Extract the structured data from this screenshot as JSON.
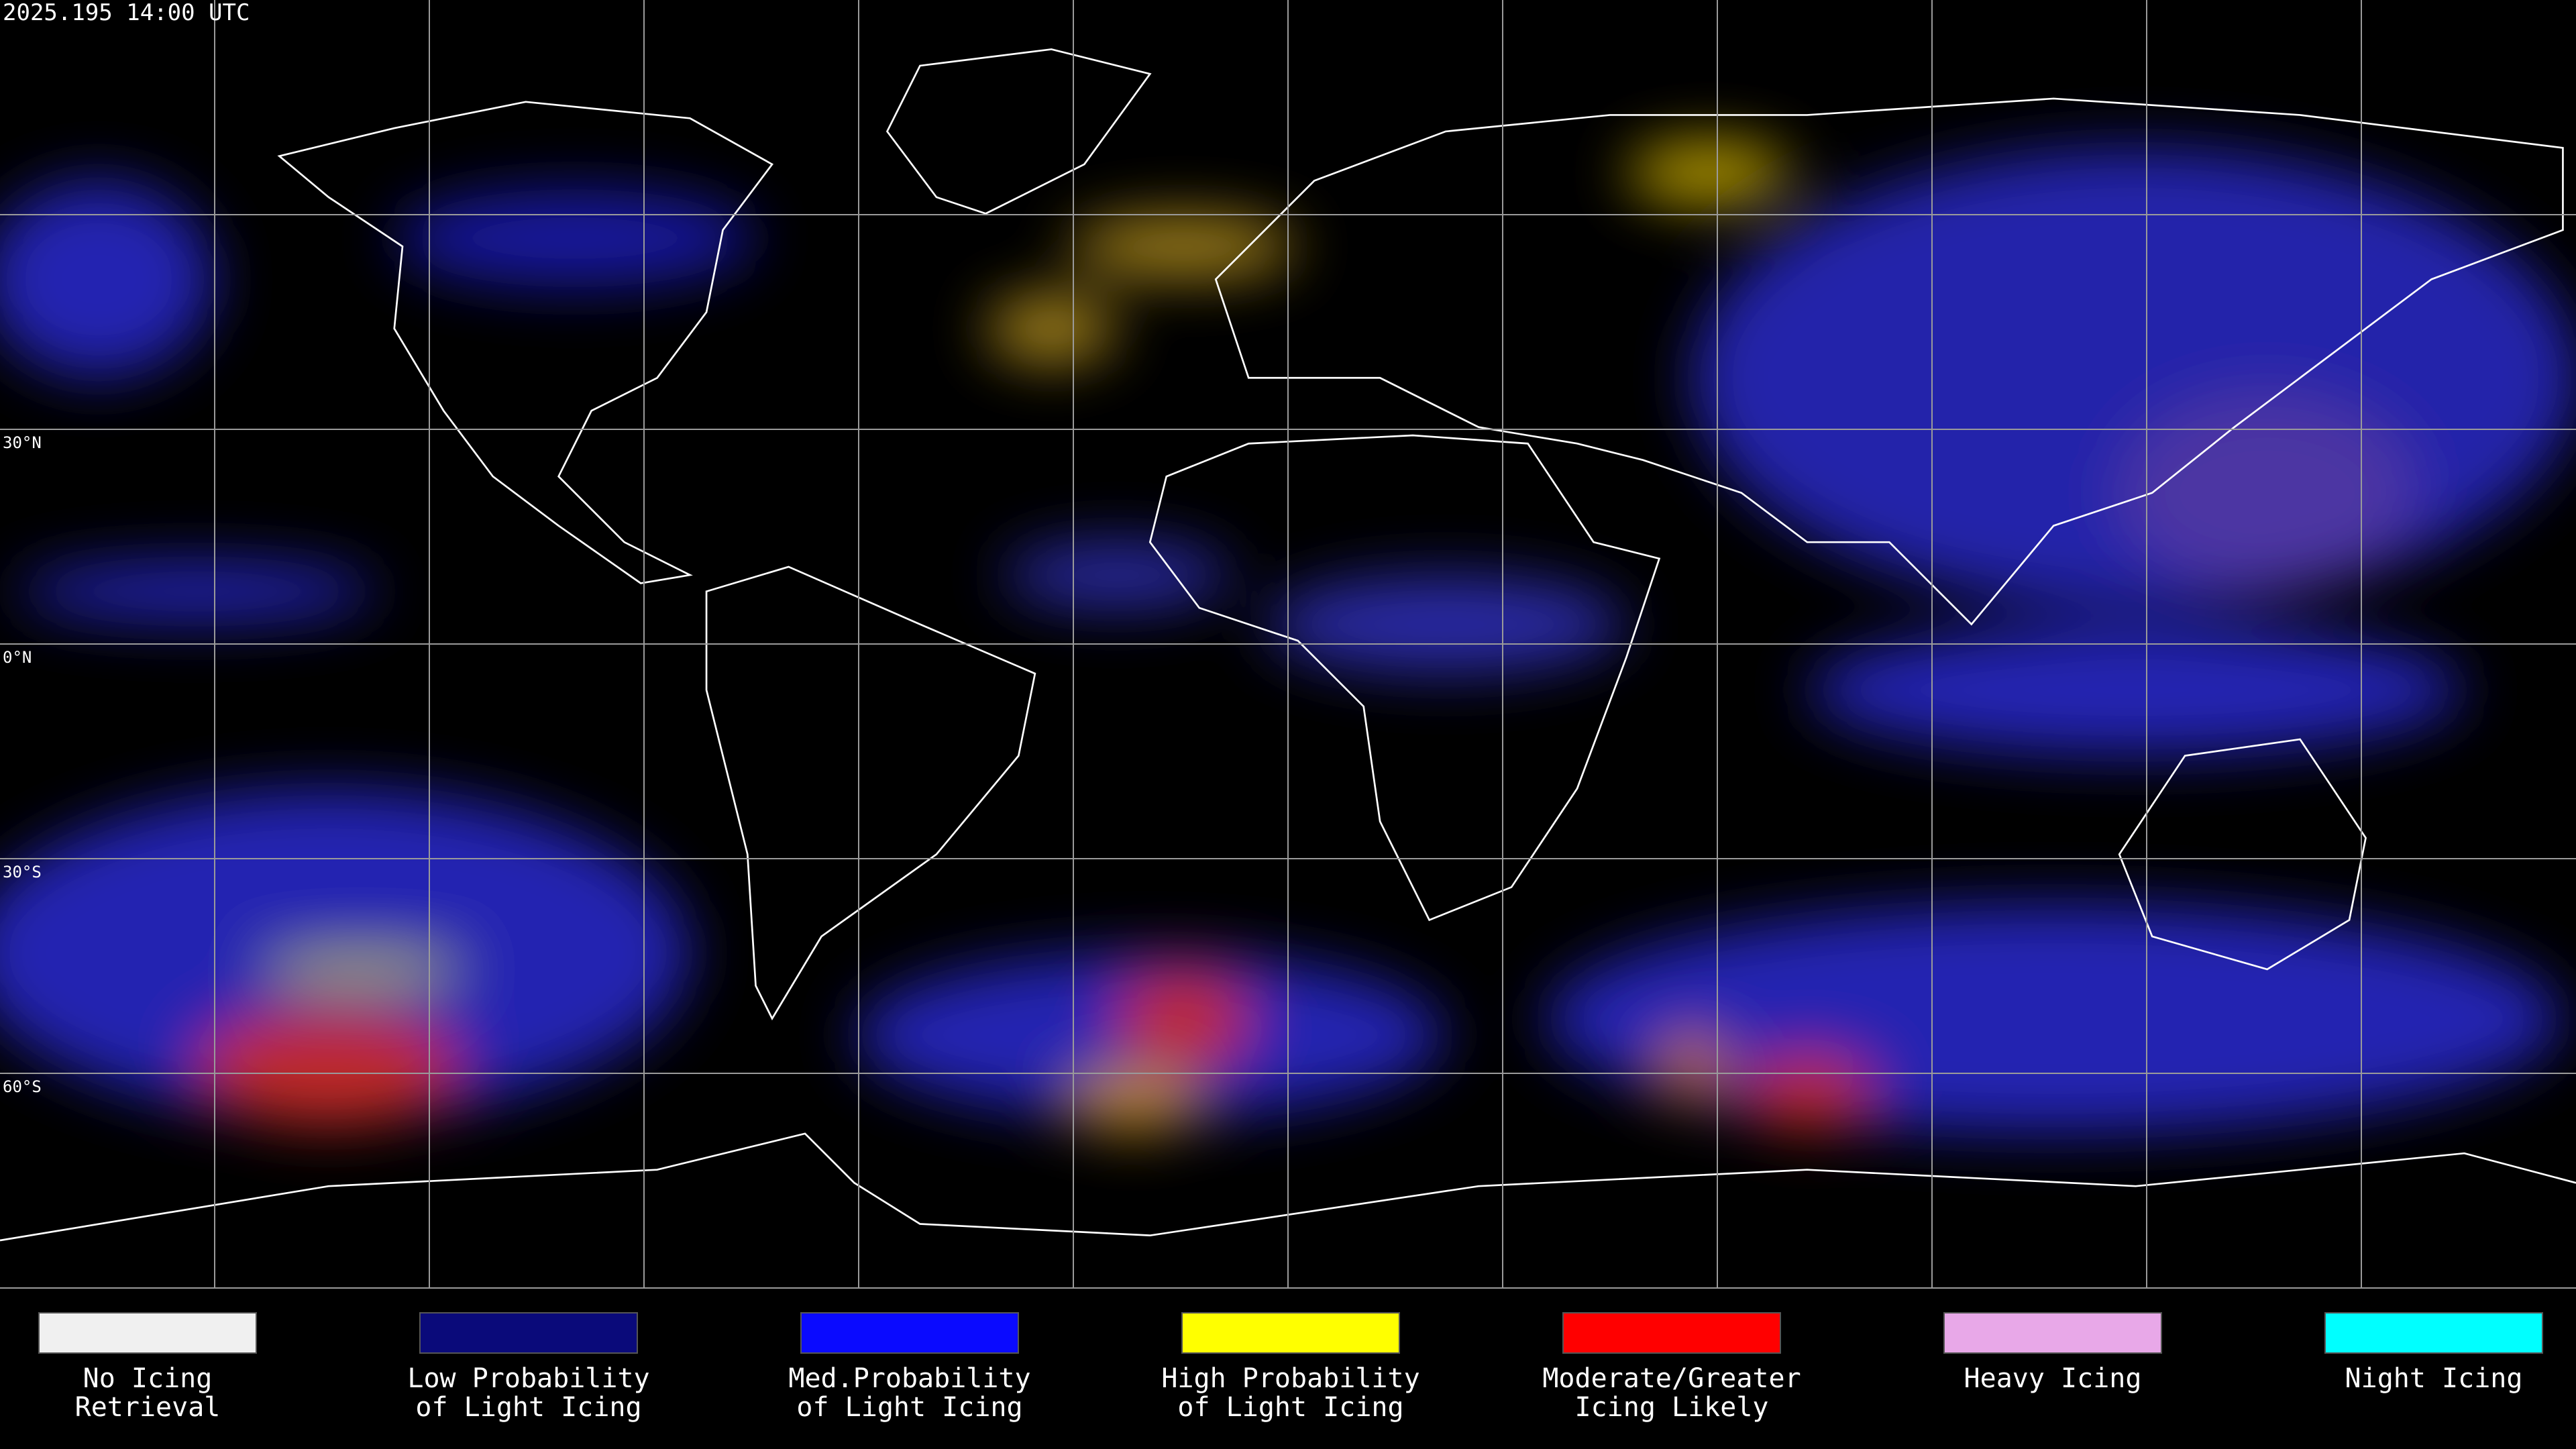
{
  "header": {
    "timestamp": "2025.195 14:00 UTC"
  },
  "map": {
    "latitude_labels": [
      "30°N",
      "0°N",
      "30°S",
      "60°S"
    ]
  },
  "legend": [
    {
      "lines": [
        "No Icing",
        "Retrieval"
      ],
      "color": "#f0f0f0"
    },
    {
      "lines": [
        "Low Probability",
        "of Light Icing"
      ],
      "color": "#0a0a7a"
    },
    {
      "lines": [
        "Med.Probability",
        "of Light Icing"
      ],
      "color": "#0a0aff"
    },
    {
      "lines": [
        "High Probability",
        "of Light Icing"
      ],
      "color": "#ffff00"
    },
    {
      "lines": [
        "Moderate/Greater",
        "Icing Likely"
      ],
      "color": "#ff0000"
    },
    {
      "lines": [
        "Heavy Icing"
      ],
      "color": "#e8a8e8"
    },
    {
      "lines": [
        "Night Icing"
      ],
      "color": "#00ffff"
    }
  ]
}
